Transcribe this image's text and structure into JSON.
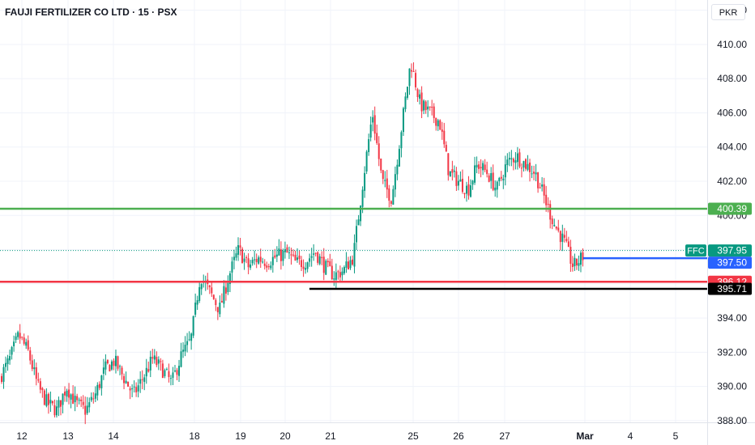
{
  "header": {
    "title": "FAUJI FERTILIZER CO LTD · 15 · PSX",
    "currency": "PKR"
  },
  "colors": {
    "up": "#089981",
    "down": "#f23645",
    "green_line": "#4caf50",
    "red_line": "#f23645",
    "blue_line": "#2962ff",
    "black_line": "#000000",
    "grid": "#f0f3fa",
    "axis_text": "#131722"
  },
  "chart_data": {
    "type": "candlestick",
    "title": "FAUJI FERTILIZER CO LTD · 15 · PSX",
    "ylim": [
      387.9,
      412.6
    ],
    "y_ticks": [
      "388.00",
      "390.00",
      "392.00",
      "394.00",
      "396.00",
      "398.00",
      "400.00",
      "402.00",
      "404.00",
      "406.00",
      "408.00",
      "410.00",
      "412.00"
    ],
    "x_tick_labels": [
      "12",
      "13",
      "14",
      "18",
      "19",
      "20",
      "21",
      "25",
      "26",
      "27",
      "Mar",
      "4",
      "5"
    ],
    "bold_tick_labels": [
      "Mar"
    ],
    "symbol": "FFC",
    "last_price": "397.95",
    "price_path": [
      390.5,
      391.5,
      393.0,
      392.0,
      390.0,
      389.0,
      388.6,
      390.0,
      389.0,
      388.6,
      389.5,
      391.0,
      391.5,
      390.5,
      389.5,
      390.5,
      391.6,
      391.0,
      390.2,
      391.8,
      392.7,
      396.5,
      395.5,
      394.5,
      396.5,
      398.0,
      397.0,
      397.5,
      397.3,
      397.6,
      397.8,
      397.2,
      397.3,
      397.9,
      397.0,
      396.5,
      396.8,
      397.6,
      402.0,
      406.0,
      402.0,
      401.0,
      405.0,
      409.0,
      406.5,
      406.0,
      405.5,
      402.5,
      402.0,
      401.5,
      403.0,
      402.5,
      401.5,
      403.0,
      403.5,
      403.0,
      402.5,
      401.0,
      399.5,
      398.5,
      397.0,
      397.6
    ],
    "horizontal_lines": [
      {
        "price": 400.39,
        "label": "400.39",
        "style": "green"
      },
      {
        "price": 397.5,
        "label": "397.50",
        "style": "blue"
      },
      {
        "price": 396.12,
        "label": "396.12",
        "style": "red"
      },
      {
        "price": 395.71,
        "label": "395.71",
        "style": "black"
      }
    ],
    "grid": true
  }
}
